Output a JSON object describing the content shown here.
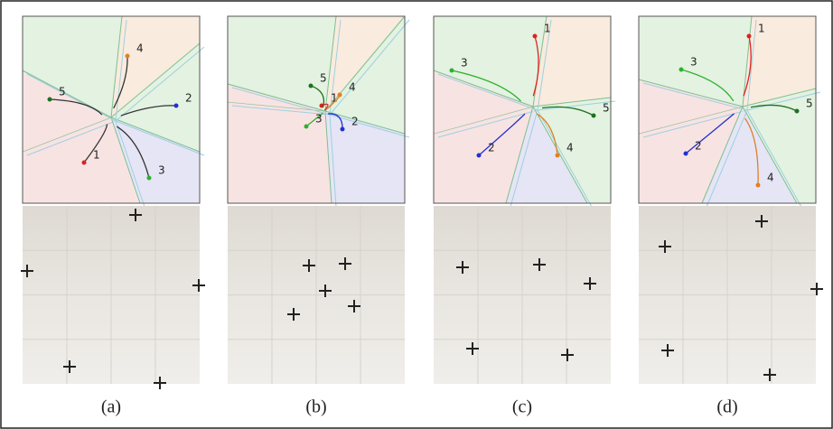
{
  "panels": [
    {
      "caption": "(a)",
      "robot_labels": [
        "1",
        "2",
        "3",
        "4",
        "5"
      ]
    },
    {
      "caption": "(b)",
      "robot_labels": [
        "1",
        "2",
        "3",
        "4",
        "5"
      ]
    },
    {
      "caption": "(c)",
      "robot_labels": [
        "1",
        "2",
        "3",
        "4",
        "5"
      ]
    },
    {
      "caption": "(d)",
      "robot_labels": [
        "1",
        "2",
        "3",
        "4",
        "5"
      ]
    }
  ]
}
